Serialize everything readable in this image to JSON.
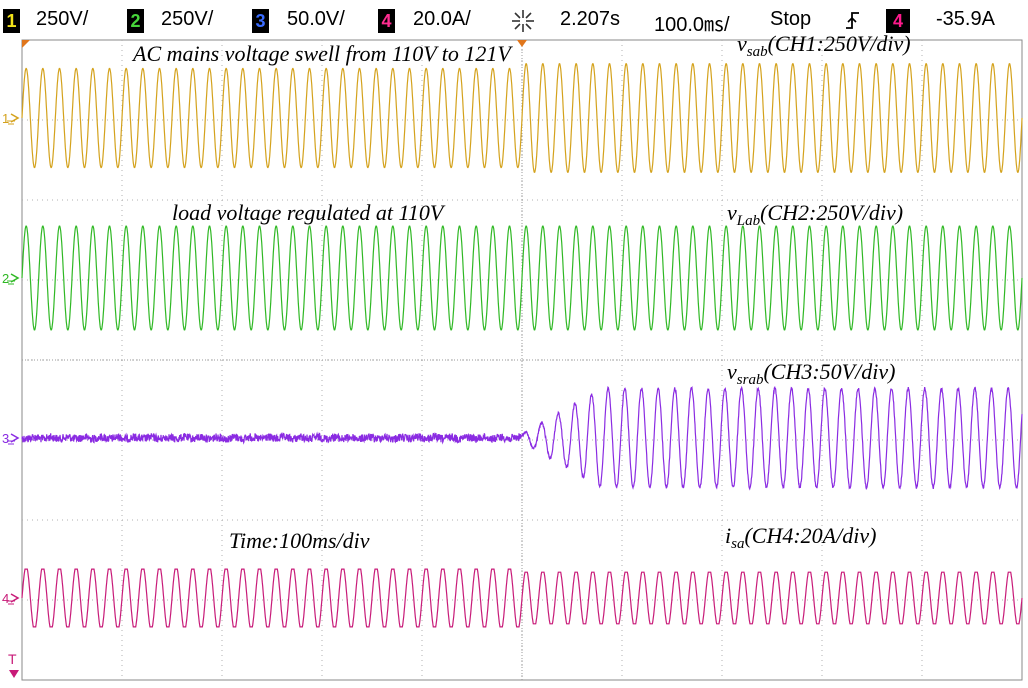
{
  "status_bar": {
    "ch1": {
      "num": "1",
      "scale": "250V/",
      "color": "#f2e21a"
    },
    "ch2": {
      "num": "2",
      "scale": "250V/",
      "color": "#47d63a"
    },
    "ch3": {
      "num": "3",
      "scale": "50.0V/",
      "color": "#3a6cff"
    },
    "ch4": {
      "num": "4",
      "scale": "20.0A/",
      "color": "#ff2d91"
    },
    "trigger_position": "2.207s",
    "timebase": "100.0㎳/",
    "run_state": "Stop",
    "trigger_icon": "rising-edge-trigger-icon",
    "trigger_channel": "4",
    "trigger_level": "-35.9A",
    "acquire_icon": "acquisition-star-icon"
  },
  "annotations": {
    "ch1_note": "AC mains voltage swell from 110V to 121V",
    "ch1_label_main": "v",
    "ch1_label_sub": "sab",
    "ch1_label_rest": "(CH1:250V/div)",
    "ch2_note": "load voltage regulated at 110V",
    "ch2_label_main": "v",
    "ch2_label_sub": "Lab",
    "ch2_label_rest": "(CH2:250V/div)",
    "ch3_label_main": "v",
    "ch3_label_sub": "srab",
    "ch3_label_rest": "(CH3:50V/div)",
    "time_note": "Time:100ms/div",
    "ch4_label_main": "i",
    "ch4_label_sub": "sa",
    "ch4_label_rest": "(CH4:20A/div)"
  },
  "chart_data": {
    "type": "line",
    "time_per_div_ms": 100,
    "divisions_x": 10,
    "event_time_div": 5.0,
    "cycles_total": 60,
    "series": [
      {
        "name": "v_sab",
        "channel": "CH1",
        "color": "#d4a21c",
        "scale": "250V/div",
        "amplitude_before_div": 0.62,
        "amplitude_after_div": 0.68
      },
      {
        "name": "v_Lab",
        "channel": "CH2",
        "color": "#2fb824",
        "scale": "250V/div",
        "amplitude_before_div": 0.65,
        "amplitude_after_div": 0.65
      },
      {
        "name": "v_srab",
        "channel": "CH3",
        "color": "#8a2be2",
        "scale": "50V/div",
        "amplitude_before_div": 0.05,
        "amplitude_after_div": 0.62
      },
      {
        "name": "i_sa",
        "channel": "CH4",
        "color": "#c81a78",
        "scale": "20A/div",
        "amplitude_before_div": 0.38,
        "amplitude_after_div": 0.34
      }
    ]
  }
}
